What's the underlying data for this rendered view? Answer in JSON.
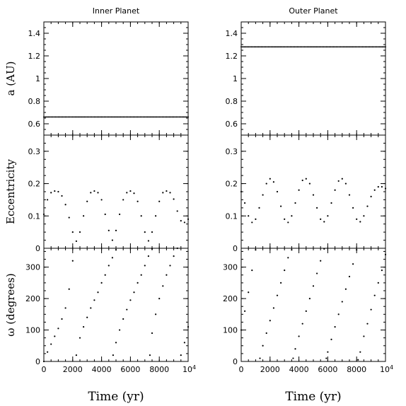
{
  "chart_data": {
    "type": "scatter",
    "figure": {
      "columns": [
        {
          "title": "Inner Planet",
          "xlabel": "Time (yr)"
        },
        {
          "title": "Outer Planet",
          "xlabel": "Time (yr)"
        }
      ],
      "rows": [
        {
          "ylabel": "a (AU)",
          "ylim": [
            0.5,
            1.5
          ],
          "yticks": [
            "0.6",
            "0.8",
            "1",
            "1.2",
            "1.4"
          ],
          "ytick_values": [
            0.6,
            0.8,
            1.0,
            1.2,
            1.4
          ]
        },
        {
          "ylabel": "Eccentricity",
          "ylim": [
            0,
            0.35
          ],
          "yticks": [
            "0",
            "0.1",
            "0.2",
            "0.3"
          ],
          "ytick_values": [
            0,
            0.1,
            0.2,
            0.3
          ]
        },
        {
          "ylabel": "ω (degrees)",
          "ylim": [
            0,
            360
          ],
          "yticks": [
            "0",
            "100",
            "200",
            "300"
          ],
          "ytick_values": [
            0,
            100,
            200,
            300
          ]
        }
      ],
      "xlim": [
        0,
        10000
      ],
      "xticks": [
        "0",
        "2000",
        "4000",
        "6000",
        "8000",
        "10⁴"
      ],
      "xtick_values": [
        0,
        2000,
        4000,
        6000,
        8000,
        10000
      ]
    },
    "panels": [
      {
        "planet": "Inner Planet",
        "quantity": "a (AU)",
        "series": [
          {
            "x": [
              0,
              10000
            ],
            "y": [
              0.66,
              0.66
            ],
            "style": "constant"
          }
        ]
      },
      {
        "planet": "Outer Planet",
        "quantity": "a (AU)",
        "series": [
          {
            "x": [
              0,
              10000
            ],
            "y": [
              1.28,
              1.28
            ],
            "style": "constant"
          }
        ]
      },
      {
        "planet": "Inner Planet",
        "quantity": "Eccentricity",
        "series": [
          {
            "x": [
              0,
              250,
              500,
              750,
              1000,
              1250,
              1500,
              1750,
              2000,
              2250,
              2500,
              2750,
              3000,
              3250,
              3500,
              3750,
              4000,
              4250,
              4500,
              4750,
              5000,
              5250,
              5500,
              5750,
              6000,
              6250,
              6500,
              6750,
              7000,
              7250,
              7500,
              7750,
              8000,
              8250,
              8500,
              8750,
              9000,
              9250,
              9500,
              9750,
              10000
            ],
            "y": [
              0.105,
              0.15,
              0.172,
              0.177,
              0.175,
              0.162,
              0.135,
              0.095,
              0.05,
              0.022,
              0.05,
              0.1,
              0.145,
              0.172,
              0.177,
              0.172,
              0.15,
              0.105,
              0.055,
              0.025,
              0.055,
              0.105,
              0.15,
              0.172,
              0.177,
              0.17,
              0.145,
              0.1,
              0.05,
              0.023,
              0.05,
              0.1,
              0.145,
              0.172,
              0.177,
              0.172,
              0.152,
              0.115,
              0.085,
              0.08,
              0.09
            ]
          }
        ]
      },
      {
        "planet": "Outer Planet",
        "quantity": "Eccentricity",
        "series": [
          {
            "x": [
              0,
              250,
              500,
              750,
              1000,
              1250,
              1500,
              1750,
              2000,
              2250,
              2500,
              2750,
              3000,
              3250,
              3500,
              3750,
              4000,
              4250,
              4500,
              4750,
              5000,
              5250,
              5500,
              5750,
              6000,
              6250,
              6500,
              6750,
              7000,
              7250,
              7500,
              7750,
              8000,
              8250,
              8500,
              8750,
              9000,
              9250,
              9500,
              9750,
              10000
            ],
            "y": [
              0.175,
              0.14,
              0.1,
              0.08,
              0.09,
              0.125,
              0.165,
              0.2,
              0.215,
              0.205,
              0.175,
              0.13,
              0.09,
              0.08,
              0.1,
              0.14,
              0.18,
              0.21,
              0.215,
              0.2,
              0.165,
              0.125,
              0.09,
              0.082,
              0.1,
              0.14,
              0.18,
              0.208,
              0.215,
              0.2,
              0.165,
              0.125,
              0.09,
              0.082,
              0.1,
              0.13,
              0.16,
              0.18,
              0.19,
              0.19,
              0.185
            ]
          }
        ]
      },
      {
        "planet": "Inner Planet",
        "quantity": "ω (degrees)",
        "series": [
          {
            "x": [
              0,
              250,
              500,
              750,
              1000,
              1250,
              1500,
              1750,
              2000
            ],
            "y": [
              0,
              30,
              55,
              80,
              105,
              135,
              170,
              230,
              320
            ]
          },
          {
            "x": [
              2250,
              2500,
              2750,
              3000,
              3250,
              3500,
              3750,
              4000,
              4250,
              4500,
              4750,
              5000
            ],
            "y": [
              20,
              75,
              110,
              140,
              170,
              195,
              220,
              250,
              275,
              305,
              330,
              355
            ]
          },
          {
            "x": [
              4800,
              5000,
              5250,
              5500,
              5750,
              6000,
              6250,
              6500,
              6750,
              7000,
              7250,
              7500
            ],
            "y": [
              20,
              60,
              100,
              135,
              165,
              195,
              220,
              250,
              275,
              305,
              335,
              358
            ]
          },
          {
            "x": [
              7350,
              7500,
              7750,
              8000,
              8250,
              8500,
              8750,
              9000,
              9250
            ],
            "y": [
              20,
              90,
              150,
              200,
              240,
              275,
              305,
              335,
              360
            ]
          },
          {
            "x": [
              9500,
              9750,
              10000
            ],
            "y": [
              20,
              60,
              110
            ]
          }
        ]
      },
      {
        "planet": "Outer Planet",
        "quantity": "ω (degrees)",
        "series": [
          {
            "x": [
              0,
              250,
              500,
              750,
              1000
            ],
            "y": [
              100,
              160,
              220,
              290,
              355
            ]
          },
          {
            "x": [
              1300,
              1500,
              1750,
              2000,
              2250,
              2500,
              2750,
              3000,
              3250,
              3500
            ],
            "y": [
              10,
              50,
              90,
              130,
              170,
              210,
              250,
              290,
              330,
              355
            ]
          },
          {
            "x": [
              3600,
              3750,
              4000,
              4250,
              4500,
              4750,
              5000,
              5250,
              5500,
              5750
            ],
            "y": [
              10,
              40,
              80,
              120,
              160,
              200,
              240,
              280,
              320,
              358
            ]
          },
          {
            "x": [
              5900,
              6000,
              6250,
              6500,
              6750,
              7000,
              7250,
              7500,
              7750,
              8000
            ],
            "y": [
              10,
              30,
              70,
              110,
              150,
              190,
              230,
              270,
              310,
              355
            ]
          },
          {
            "x": [
              8100,
              8250,
              8500,
              8750,
              9000,
              9250,
              9500,
              9750,
              10000
            ],
            "y": [
              5,
              30,
              80,
              120,
              165,
              210,
              250,
              290,
              340
            ]
          }
        ]
      }
    ]
  }
}
